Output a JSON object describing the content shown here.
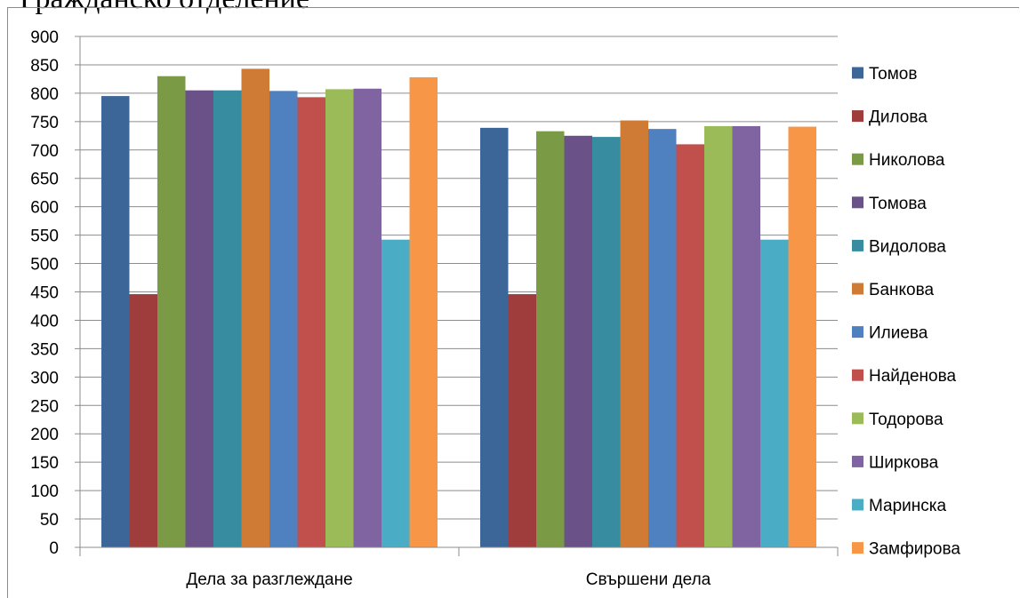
{
  "heading": "Гражданско отделение",
  "chart_data": {
    "type": "bar",
    "title": "",
    "xlabel": "",
    "ylabel": "",
    "ylim": [
      0,
      900
    ],
    "ytick_step": 50,
    "grid": true,
    "legend_position": "right",
    "categories": [
      "Дела за разглеждане",
      "Свършени дела"
    ],
    "series": [
      {
        "name": "Томов",
        "color": "#3d6698",
        "values": [
          795,
          739
        ]
      },
      {
        "name": "Дилова",
        "color": "#9e3d3b",
        "values": [
          446,
          446
        ]
      },
      {
        "name": "Николова",
        "color": "#7b9a45",
        "values": [
          830,
          733
        ]
      },
      {
        "name": "Томова",
        "color": "#6a5188",
        "values": [
          805,
          725
        ]
      },
      {
        "name": "Видолова",
        "color": "#378ca0",
        "values": [
          805,
          723
        ]
      },
      {
        "name": "Банкова",
        "color": "#cf7a35",
        "values": [
          843,
          752
        ]
      },
      {
        "name": "Илиева",
        "color": "#4f81c0",
        "values": [
          804,
          737
        ]
      },
      {
        "name": "Найденова",
        "color": "#c1504d",
        "values": [
          793,
          710
        ]
      },
      {
        "name": "Тодорова",
        "color": "#9bbb59",
        "values": [
          807,
          742
        ]
      },
      {
        "name": "Ширкова",
        "color": "#8064a2",
        "values": [
          808,
          742
        ]
      },
      {
        "name": "Маринска",
        "color": "#4bacc6",
        "values": [
          542,
          542
        ]
      },
      {
        "name": "Замфирова",
        "color": "#f79646",
        "values": [
          828,
          741
        ]
      }
    ]
  }
}
